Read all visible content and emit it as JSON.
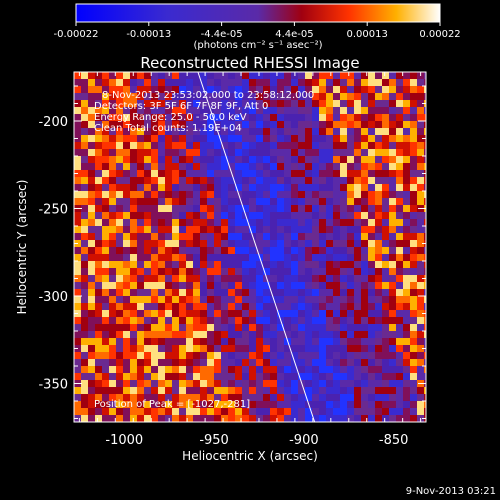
{
  "chart_data": {
    "type": "heatmap",
    "title": "Reconstructed RHESSI Image",
    "xlabel": "Heliocentric X (arcsec)",
    "ylabel": "Heliocentric Y (arcsec)",
    "xlim": [
      -1028,
      -832
    ],
    "ylim": [
      -372,
      -172
    ],
    "xticks": [
      "-1000",
      "-950",
      "-900",
      "-850"
    ],
    "yticks": [
      "-200",
      "-250",
      "-300",
      "-350"
    ],
    "colorbar": {
      "ticks": [
        "-0.00022",
        "-0.00013",
        "-4.4e-05",
        "4.4e-05",
        "0.00013",
        "0.00022"
      ],
      "unit_label": "(photons cm⁻² s⁻¹ asec⁻²)",
      "range": [
        -0.00022,
        0.00022
      ]
    },
    "annotations": [
      "8-Nov-2013 23:53:02.000 to 23:58:12.000",
      "Detectors: 3F 5F 6F 7F 8F 9F, Att 0",
      "Energy Range: 25.0 - 50.0 keV",
      "Clean    Total counts: 1.19E+04"
    ],
    "peak_text": "Position of Peak = [-1027,-281]",
    "limb_line": [
      [
        -959,
        -172
      ],
      [
        -894,
        -372
      ]
    ],
    "grid": false
  },
  "timestamp": "9-Nov-2013 03:21",
  "colors": {
    "background": "#000000",
    "text": "#ffffff"
  }
}
